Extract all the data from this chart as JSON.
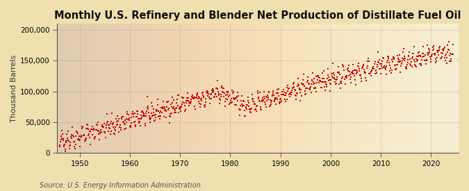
{
  "title": "Monthly U.S. Refinery and Blender Net Production of Distillate Fuel Oil",
  "ylabel": "Thousand Barrels",
  "source": "Source: U.S. Energy Information Administration",
  "background_color": "#f5e6c8",
  "plot_bg_color": "#f5e6c8",
  "dot_color": "#cc0000",
  "dot_size": 3.5,
  "xlim": [
    1945.5,
    2025.5
  ],
  "ylim": [
    0,
    210000
  ],
  "yticks": [
    0,
    50000,
    100000,
    150000,
    200000
  ],
  "xticks": [
    1950,
    1960,
    1970,
    1980,
    1990,
    2000,
    2010,
    2020
  ],
  "title_fontsize": 10.5,
  "ylabel_fontsize": 8,
  "tick_fontsize": 7.5,
  "source_fontsize": 7,
  "grid_color": "#999999",
  "grid_alpha": 0.5,
  "seed": 42,
  "start_year": 1946,
  "start_month": 1,
  "end_year": 2024,
  "end_month": 6
}
